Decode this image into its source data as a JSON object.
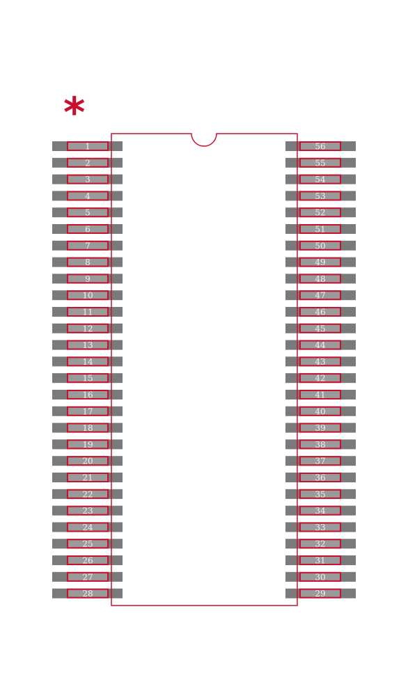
{
  "pin1_marker": "*",
  "pins_left": [
    "1",
    "2",
    "3",
    "4",
    "5",
    "6",
    "7",
    "8",
    "9",
    "10",
    "11",
    "12",
    "13",
    "14",
    "15",
    "16",
    "17",
    "18",
    "19",
    "20",
    "21",
    "22",
    "23",
    "24",
    "25",
    "26",
    "27",
    "28"
  ],
  "pins_right": [
    "56",
    "55",
    "54",
    "53",
    "52",
    "51",
    "50",
    "49",
    "48",
    "47",
    "46",
    "45",
    "44",
    "43",
    "42",
    "41",
    "40",
    "39",
    "38",
    "37",
    "36",
    "35",
    "34",
    "33",
    "32",
    "31",
    "30",
    "29"
  ],
  "colors": {
    "outline": "#c8102e",
    "pad": "#7a7a7a",
    "pin_fill": "#9a9a9a",
    "pin_text": "#f2f2f2"
  }
}
